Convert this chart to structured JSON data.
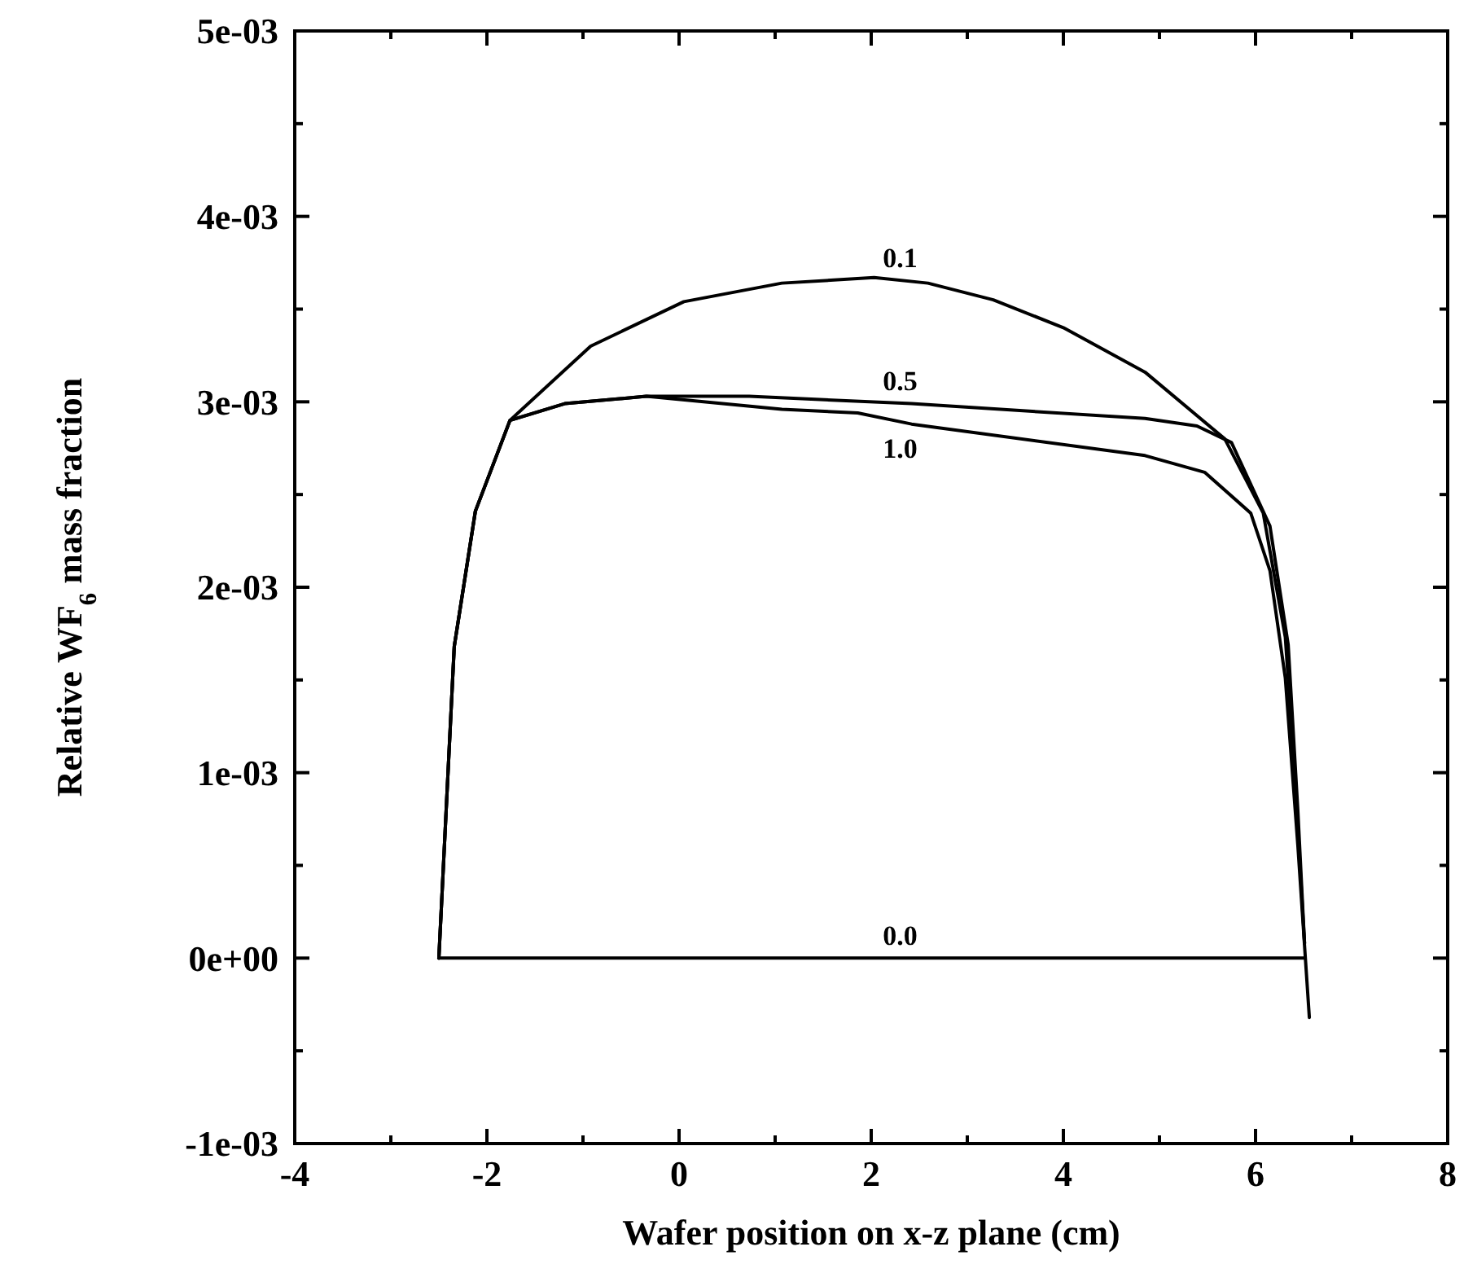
{
  "chart_data": {
    "type": "line",
    "xlabel": "Wafer position on x-z plane (cm)",
    "ylabel": "Relative WF$_{6}$ mass fraction",
    "xlim": [
      -4,
      8
    ],
    "xticks": [
      -4,
      {
        "value": -3,
        "label": null
      },
      -2,
      {
        "value": -1,
        "label": null
      },
      0,
      {
        "value": 1,
        "label": null
      },
      2,
      {
        "value": 3,
        "label": null
      },
      4,
      {
        "value": 5,
        "label": null
      },
      6,
      {
        "value": 7,
        "label": null
      },
      8
    ],
    "ylim": [
      -0.001,
      0.005
    ],
    "yticks": [
      {
        "value": -0.001,
        "label": "-1e-03"
      },
      {
        "value": -0.0005,
        "label": null
      },
      {
        "value": 0,
        "label": "0e+00"
      },
      {
        "value": 0.0005,
        "label": null
      },
      {
        "value": 0.001,
        "label": "1e-03"
      },
      {
        "value": 0.0015,
        "label": null
      },
      {
        "value": 0.002,
        "label": "2e-03"
      },
      {
        "value": 0.0025,
        "label": null
      },
      {
        "value": 0.003,
        "label": "3e-03"
      },
      {
        "value": 0.0035,
        "label": null
      },
      {
        "value": 0.004,
        "label": "4e-03"
      },
      {
        "value": 0.0045,
        "label": null
      },
      {
        "value": 0.005,
        "label": "5e-03"
      }
    ],
    "grid": false,
    "marker": "none",
    "line_style": "solid",
    "series": [
      {
        "name": "0.1",
        "color": "#000000",
        "x": [
          -2.5,
          -2.34,
          -2.12,
          -1.76,
          -0.92,
          0.05,
          1.07,
          2.03,
          2.59,
          3.27,
          4.0,
          4.85,
          5.68,
          6.08,
          6.31,
          6.41,
          6.51
        ],
        "values": [
          0,
          0.00168,
          0.00241,
          0.0029,
          0.0033,
          0.00354,
          0.00364,
          0.00367,
          0.00364,
          0.00355,
          0.0034,
          0.00316,
          0.0028,
          0.0024,
          0.00173,
          0.00097,
          8e-05
        ]
      },
      {
        "name": "0.5",
        "color": "#000000",
        "x": [
          -2.5,
          -2.34,
          -2.12,
          -1.76,
          -1.19,
          -0.34,
          0.73,
          2.42,
          4.85,
          5.39,
          5.75,
          6.15,
          6.34,
          6.44,
          6.51
        ],
        "values": [
          0,
          0.00168,
          0.00241,
          0.0029,
          0.00299,
          0.00303,
          0.00303,
          0.00299,
          0.00291,
          0.00287,
          0.00278,
          0.00233,
          0.00169,
          0.0008,
          8e-05
        ]
      },
      {
        "name": "1.0",
        "color": "#000000",
        "x": [
          -2.5,
          -2.34,
          -2.12,
          -1.76,
          -1.19,
          -0.34,
          1.07,
          1.86,
          2.42,
          4.85,
          5.47,
          5.95,
          6.15,
          6.31,
          6.44,
          6.56
        ],
        "values": [
          0,
          0.00168,
          0.00241,
          0.0029,
          0.00299,
          0.00303,
          0.00296,
          0.00294,
          0.00288,
          0.00271,
          0.00262,
          0.0024,
          0.00209,
          0.00151,
          0.00061,
          -0.00032
        ]
      },
      {
        "name": "0.0",
        "color": "#000000",
        "x": [
          -2.5,
          6.51
        ],
        "values": [
          0,
          0
        ]
      }
    ]
  }
}
